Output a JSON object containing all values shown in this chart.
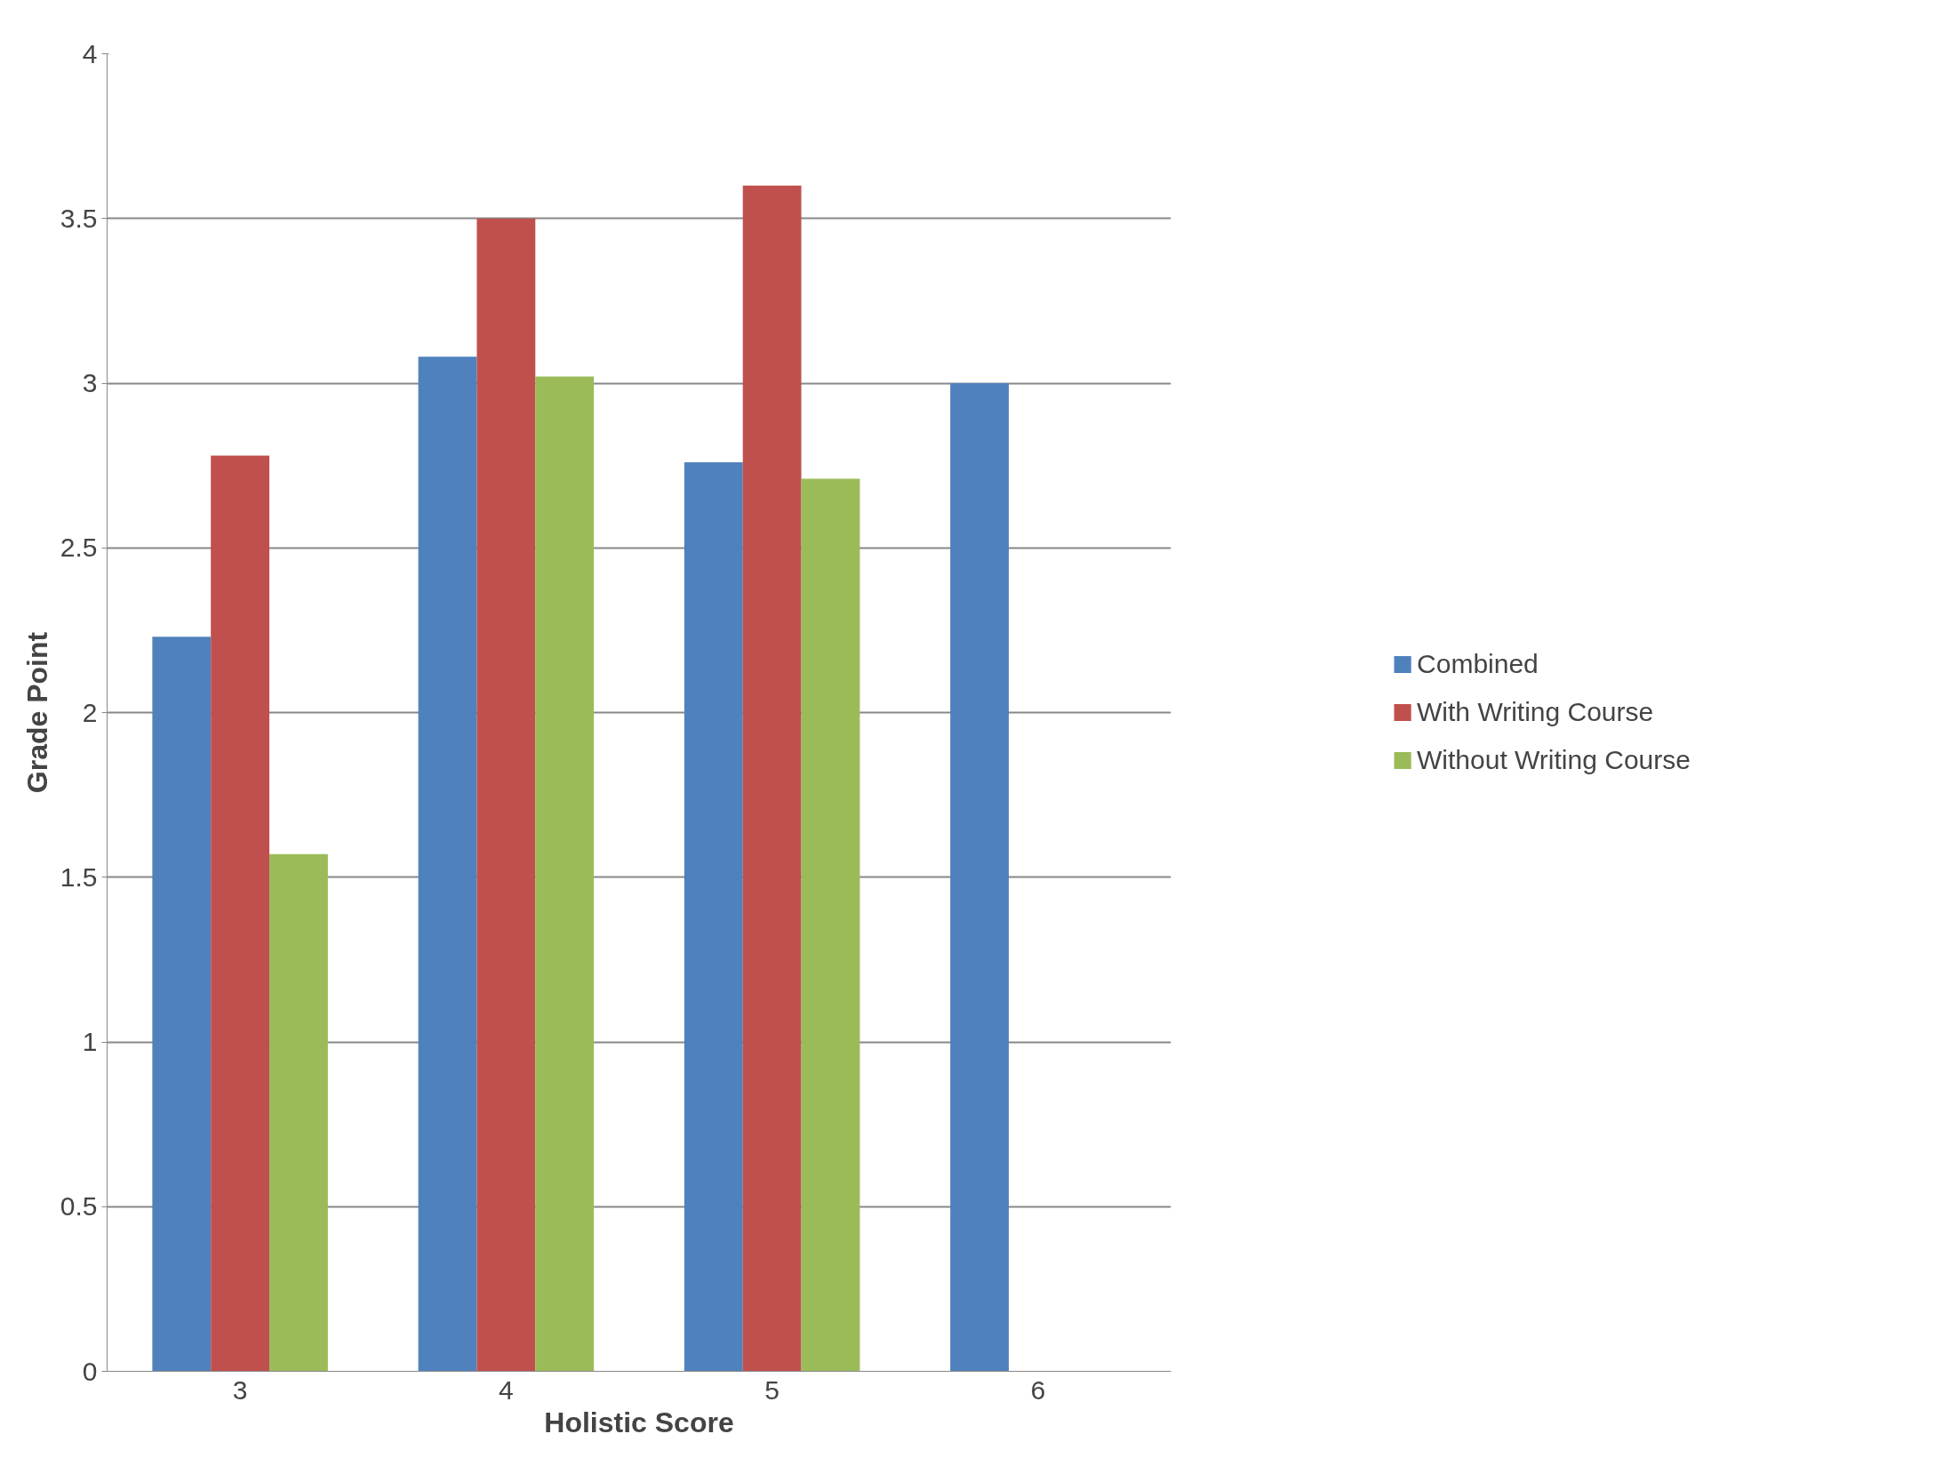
{
  "chart_data": {
    "type": "bar",
    "xlabel": "Holistic Score",
    "ylabel": "Grade Point",
    "categories": [
      "3",
      "4",
      "5",
      "6"
    ],
    "series": [
      {
        "name": "Combined",
        "color": "#4f81bd",
        "values": [
          2.23,
          3.08,
          2.76,
          3.0
        ]
      },
      {
        "name": "With Writing Course",
        "color": "#c0504d",
        "values": [
          2.78,
          3.5,
          3.6,
          null
        ]
      },
      {
        "name": "Without Writing Course",
        "color": "#9bbb59",
        "values": [
          1.57,
          3.02,
          2.71,
          null
        ]
      }
    ],
    "ylim": [
      0,
      4
    ],
    "yticks": [
      0,
      0.5,
      1,
      1.5,
      2,
      2.5,
      3,
      3.5,
      4
    ],
    "grid": "y",
    "legend": "right"
  }
}
